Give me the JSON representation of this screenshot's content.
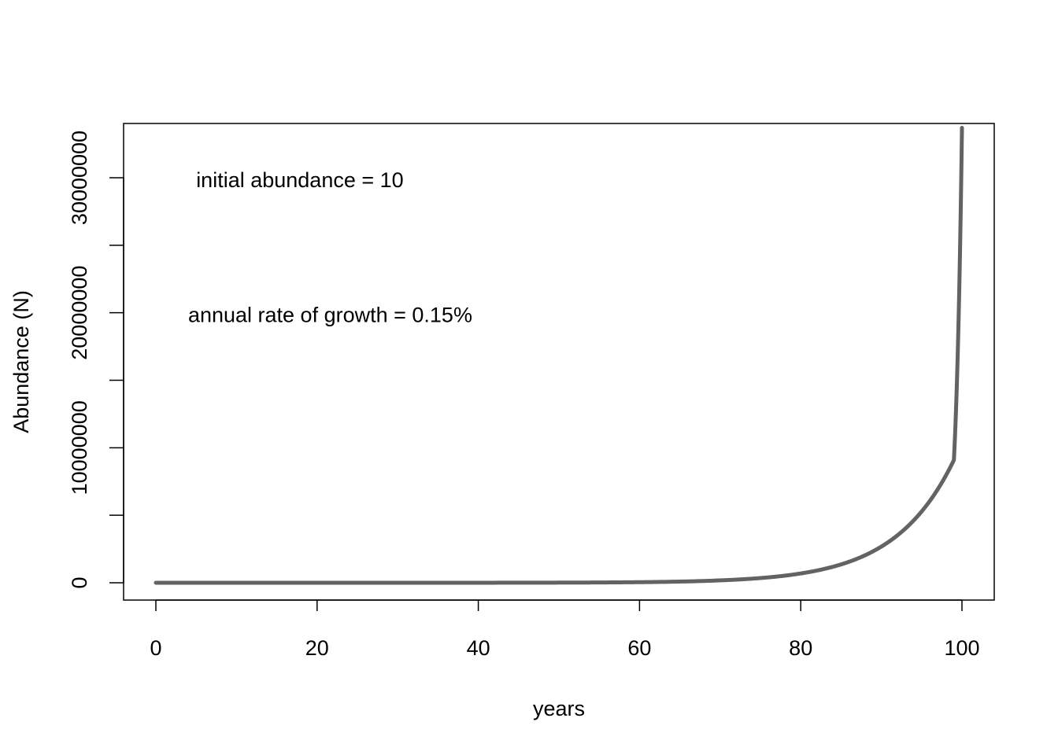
{
  "chart_data": {
    "type": "line",
    "xlabel": "years",
    "ylabel": "Abundance (N)",
    "xlim": [
      0,
      100
    ],
    "ylim": [
      0,
      34000000
    ],
    "x_ticks": [
      0,
      20,
      40,
      60,
      80,
      100
    ],
    "x_tick_labels": [
      "0",
      "20",
      "40",
      "60",
      "80",
      "100"
    ],
    "y_ticks": [
      0,
      5000000,
      10000000,
      15000000,
      20000000,
      25000000,
      30000000
    ],
    "y_tick_labels": [
      "0",
      "",
      "10000000",
      "",
      "20000000",
      "",
      "30000000"
    ],
    "grid": false,
    "annotations": [
      {
        "text": "initial abundance = 10",
        "x": 5,
        "y": 30000000
      },
      {
        "text": "annual rate of growth = 0.15%",
        "x": 4,
        "y": 20000000
      }
    ],
    "series": [
      {
        "color": "#636363",
        "x": [
          0,
          10,
          20,
          30,
          40,
          50,
          55,
          60,
          65,
          70,
          72,
          74,
          76,
          78,
          80,
          82,
          84,
          86,
          88,
          90,
          91,
          92,
          93,
          94,
          95,
          96,
          97,
          98,
          99,
          100
        ],
        "y": [
          10,
          40,
          164,
          662,
          2679,
          10836,
          21800,
          43825,
          88150,
          177300,
          232500,
          305100,
          400200,
          525000,
          689000,
          904000,
          1186000,
          1556000,
          2042000,
          2679000,
          3069000,
          3515000,
          4026000,
          4611000,
          5281000,
          6049000,
          6929000,
          7936000,
          9090000,
          33700000
        ]
      }
    ]
  }
}
